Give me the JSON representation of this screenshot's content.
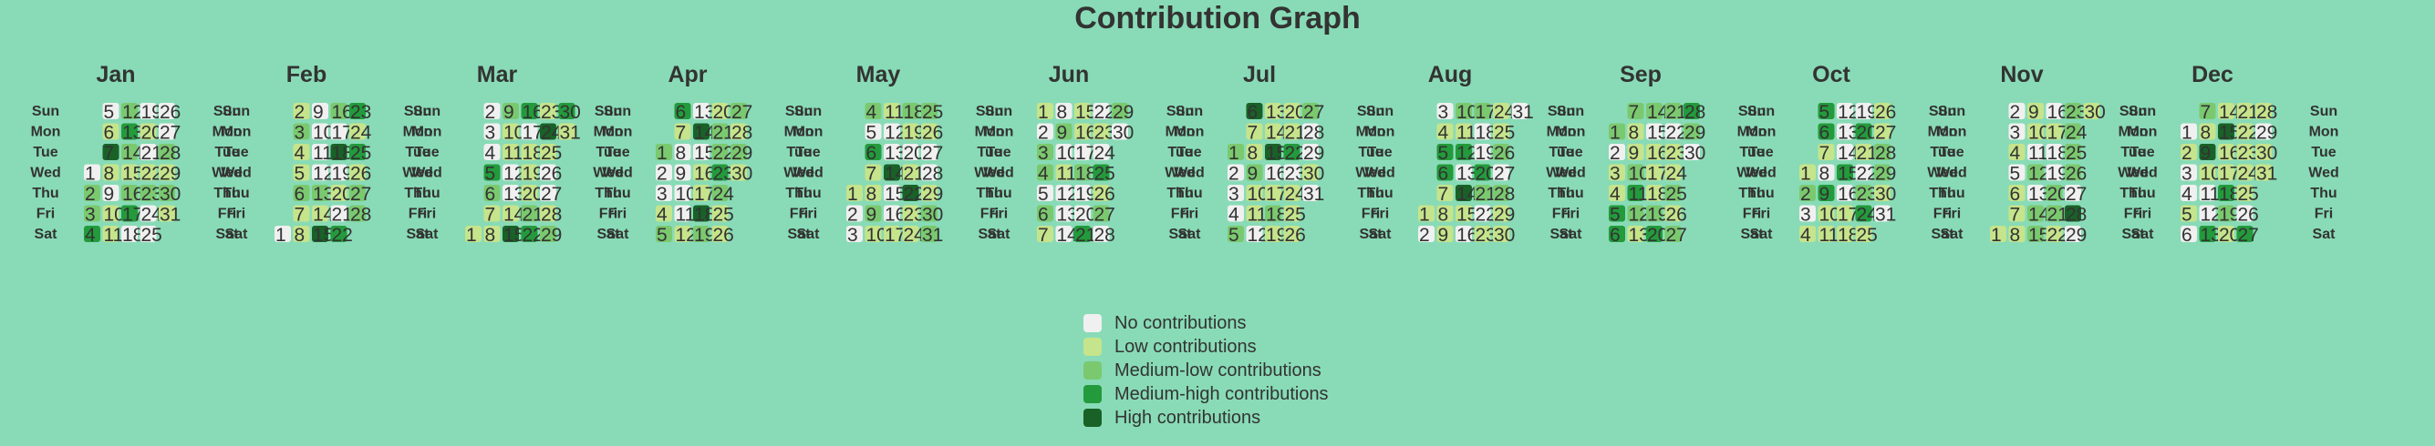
{
  "chart_data": {
    "type": "heatmap",
    "title": "Contribution Graph",
    "months": [
      "Jan",
      "Feb",
      "Mar",
      "Apr",
      "May",
      "Jun",
      "Jul",
      "Aug",
      "Sep",
      "Oct",
      "Nov",
      "Dec"
    ],
    "weekdays": [
      "Sun",
      "Mon",
      "Tue",
      "Wed",
      "Thu",
      "Fri",
      "Sat"
    ],
    "first_weekday": [
      3,
      6,
      6,
      2,
      4,
      0,
      2,
      5,
      1,
      3,
      6,
      1
    ],
    "days_in_month": [
      31,
      28,
      31,
      30,
      31,
      30,
      31,
      31,
      30,
      31,
      30,
      31
    ],
    "levels": [
      [
        0,
        2,
        2,
        3,
        0,
        1,
        4,
        1,
        0,
        1,
        1,
        2,
        3,
        2,
        1,
        2,
        3,
        0,
        0,
        1,
        0,
        1,
        2,
        0,
        0,
        0,
        0,
        2,
        1,
        2,
        1
      ],
      [
        0,
        1,
        2,
        1,
        1,
        2,
        1,
        1,
        0,
        0,
        0,
        0,
        2,
        1,
        4,
        2,
        0,
        4,
        0,
        1,
        0,
        3,
        3,
        1,
        3,
        1,
        2,
        2
      ],
      [
        1,
        0,
        0,
        0,
        3,
        2,
        1,
        1,
        2,
        1,
        1,
        0,
        0,
        1,
        4,
        3,
        0,
        1,
        1,
        1,
        2,
        3,
        1,
        4,
        1,
        0,
        0,
        1,
        2,
        3,
        1
      ],
      [
        2,
        0,
        0,
        1,
        2,
        3,
        1,
        0,
        0,
        0,
        0,
        1,
        0,
        4,
        0,
        1,
        1,
        4,
        2,
        1,
        2,
        2,
        3,
        2,
        1,
        1,
        2,
        1,
        2,
        1
      ],
      [
        1,
        0,
        0,
        2,
        0,
        3,
        1,
        1,
        2,
        1,
        1,
        0,
        0,
        4,
        0,
        0,
        1,
        2,
        1,
        0,
        1,
        4,
        1,
        1,
        2,
        1,
        0,
        0,
        1,
        2,
        2
      ],
      [
        1,
        0,
        2,
        2,
        0,
        2,
        1,
        0,
        2,
        0,
        1,
        0,
        0,
        0,
        1,
        1,
        0,
        2,
        0,
        0,
        3,
        0,
        1,
        0,
        3,
        1,
        2,
        0,
        2,
        0
      ],
      [
        2,
        0,
        0,
        0,
        2,
        4,
        1,
        1,
        2,
        1,
        1,
        0,
        1,
        1,
        4,
        0,
        1,
        2,
        1,
        1,
        1,
        3,
        0,
        1,
        1,
        1,
        2,
        0,
        0,
        1,
        0
      ],
      [
        1,
        0,
        0,
        1,
        3,
        3,
        1,
        1,
        1,
        2,
        1,
        3,
        0,
        4,
        1,
        0,
        2,
        0,
        0,
        3,
        2,
        0,
        1,
        1,
        1,
        2,
        0,
        2,
        1,
        1,
        0
      ],
      [
        2,
        0,
        1,
        1,
        3,
        3,
        2,
        1,
        1,
        2,
        3,
        2,
        1,
        2,
        0,
        1,
        1,
        1,
        2,
        3,
        2,
        0,
        1,
        1,
        2,
        1,
        2,
        3,
        2,
        0
      ],
      [
        1,
        2,
        0,
        1,
        3,
        3,
        1,
        0,
        3,
        1,
        1,
        0,
        0,
        0,
        3,
        0,
        1,
        1,
        0,
        3,
        1,
        0,
        2,
        3,
        1,
        1,
        1,
        2,
        2,
        1,
        0
      ],
      [
        1,
        0,
        0,
        1,
        0,
        1,
        1,
        1,
        1,
        1,
        0,
        2,
        0,
        2,
        2,
        0,
        1,
        0,
        0,
        2,
        2,
        1,
        2,
        2,
        2,
        2,
        0,
        4,
        0,
        1
      ],
      [
        0,
        1,
        0,
        0,
        1,
        0,
        2,
        1,
        4,
        1,
        0,
        0,
        3,
        1,
        4,
        1,
        1,
        3,
        2,
        1,
        1,
        1,
        1,
        1,
        1,
        0,
        3,
        1,
        0,
        1,
        1
      ]
    ],
    "legend": [
      {
        "label": "No contributions",
        "color": "#f0f0f0"
      },
      {
        "label": "Low contributions",
        "color": "#c6e48b"
      },
      {
        "label": "Medium-low contributions",
        "color": "#7bc96f"
      },
      {
        "label": "Medium-high contributions",
        "color": "#239a3b"
      },
      {
        "label": "High contributions",
        "color": "#196127"
      }
    ]
  }
}
